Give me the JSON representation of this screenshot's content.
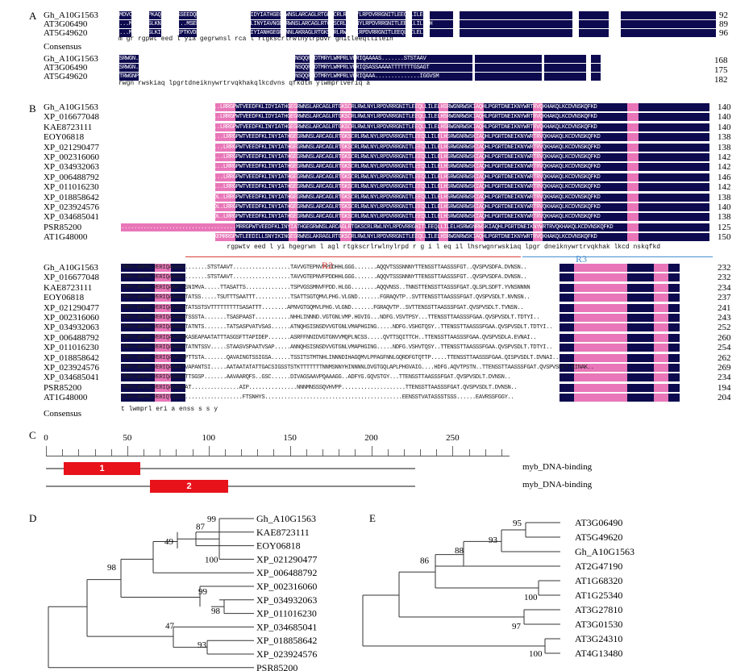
{
  "panels": {
    "A": "A",
    "B": "B",
    "C": "C",
    "D": "D",
    "E": "E"
  },
  "panelA": {
    "block1": {
      "rows": [
        {
          "name": "Gh_A10G1563",
          "seq": "MDVCGRDCVPKAQ.....SSEEDQMEL.RRGPWTVEEDFKLIDYIATHGEGRWNSLARCAGLRTGKSCRLRWLNYLRPDVRRGNITLEEQLLILELH",
          "end": "92"
        },
        {
          "name": "AT3G06490",
          "seq": "...MDKRGTSLKNNN......MSEDEVDLRRGPWTLEEDNLLINYIAVNGEGRWNSLARCAGLRTGKSCRLRWLNYLRPDVRRGNITLEEQLLILELH",
          "end": "89"
        },
        {
          "name": "AT5G49620",
          "seq": "...MDKRGCSLKINKNMEEPTKVDEEREMRRGPWTVEEDLLIYIANHGEGRWNNLAKRAGLRTGKSCRLRWLNYLRPDVRRGNITLEEQLLILELH",
          "end": "96"
        }
      ],
      "consensus_label": "Consensus",
      "consensus": "m     gr                  rgpwt eed    l  yia  gegrwnsl  rca l rtgkscrlrwlnylrpdvr gnitleeqllileih"
    },
    "block2": {
      "rows": [
        {
          "name": "Gh_A10G1563",
          "seq": "SRWGN..............RWSKIAQHLPGRTDNEIKNYWRTRVQKHAKQLKCDVNSQQFKDTMRYLWMPRLVERIQAAAAS.......STSTAAV",
          "end": "168"
        },
        {
          "name": "AT3G06490",
          "seq": "SRWGN..............RWSKIAQHLPGRTDNEIKNYWRTRVQKHAKQLKCDVNSQQFKDTMRYLWMPRLVERIQSASSAAAATTTTTTTGSAGT",
          "end": "175"
        },
        {
          "name": "AT5G49620",
          "seq": "TRWGNPEFDIIKFGSSCEDRWSKIAQHLPGRTDNEIKNYWRTRVQKHAKQLKCDVNSQQFKDTMRYLWMPRLVERIQAAA..............IGGVSM",
          "end": "182"
        }
      ],
      "consensus": "rwgn              rwskiaq lpgrtdneiknywrtrvqkhakqlkcdvns qfkdtm ylwmprlveriq a"
    }
  },
  "panelB": {
    "block1": {
      "rows": [
        {
          "name": "Gh_A10G1563",
          "seq": "MDVQGRDCVP.......KAQSSEEDQME...LRRGPWTVEEDFKLIDYIATHGEGRWNSLARCAGLRTGKSCRLRWLNYLRPDVRRGNITLEEQLLILELHSRWGNRWSKIAQHLPGRTDNEIKNYWRTRVQKHAKQLKCDVNSKQFKD",
          "end": "140"
        },
        {
          "name": "XP_016677048",
          "seq": "MDVQGRDCVP.......KAQSSEEDQME...LRRGPWTVEEDFKLIDYIATHGEGRWNSLARCAGLRTGKSCRLRWLNYLRPDVRRGNITLEEQLLILELHSRWGNRWSKIAQHLPGRTDNEIKNYWRTRVQKHAKQLKCDVNSKQFKD",
          "end": "140"
        },
        {
          "name": "KAE8723111",
          "seq": "MDVKARECAP.......NVQSSEEDEME...LRRGPWTVEEDFKLINYIATHGEGRWNSLARCAGLRTGKSCRLRWLNYLRPDVRRGNITLEEQLLILELHSRWGNRWSKIAQHLPGRTDNEIKNYWRTRVQKHAKQLKCDVNSKQFKD",
          "end": "140"
        },
        {
          "name": "EOY06818",
          "seq": "MDVKARGCSA.......DVQS...EEEDE...LRRGPWTVEEDFKLINYIATHGEGRWNSLARCAGLRTGKSCRLRWLNYLRPDVRRGNITLEEQLLILELHSRWGNRWSKIAQHLPGRTDNEIKNYWRTRVQKHAKQLKCDVNSKQFKD",
          "end": "138"
        },
        {
          "name": "XP_021290477",
          "seq": "MDVKARGCSA.......DVQS...EEEND...LRRGPWTVEEDFKLINYIATHGEGRWNSLARCAGLRTGKSCRLRWLNYLRPDVRRGNITLEEQLLILELHSRWGNRWSKIAQHLPGRTDNEIKNYWRTRVQKHAKQLKCDVNSKQFKD",
          "end": "138"
        },
        {
          "name": "XP_002316060",
          "seq": "MDVKGNSNSS.......SSTTQSDEEHMDL..LRRGPWTVEEDFKLINYIATHGEGRWNSLARCAGLRTGKSCRLRWLNYLRPDVRRGNITLEEQLLILELHSRWGNRWSKIAQHLPGRTDNEIKNYWRTRVQKHAKQLKCDVNSKQFKD",
          "end": "142"
        },
        {
          "name": "XP_034932063",
          "seq": "MDVKGNSNSS.......SSTTQSDEEHMDL..LRRGPWTVEEDFKLINYIATHGEGRWNSLARCAGLRTGKSCRLRWLNYLRPDVRRGNITLEEQLLILELHSRWGNRWSKIAQHLPGRTDNEIKNYWRTRVQKHAKQLKCDVNSKQFKD",
          "end": "142"
        },
        {
          "name": "XP_006488792",
          "seq": "MDVKGRACPSKGNSK..SSSTISSEEDLD...LRRGPWTVEEDFKLINYIATHGEGRWNSLARCAGLRTGKSCRLRWLNYLRPDVRRGNITLEEQLLILELHSRWGNRWSKIAQHLPGRTDNEIKNYWRTRVQKHAKQLKCDVNSKQFKD",
          "end": "146"
        },
        {
          "name": "XP_011016230",
          "seq": "MDVKGNSNSS.......SSTTQSDEEHMDL..LRRGPWTVEEDFKLINYIATHGEGRWNSLARCAGLRTGKSCRLRWLNYLRPDVRRGNITLEEQLLILELHSRWGNRWSKIAQHLPGRTDNEIKNYWRTRVQKHAKQLKCDVNSKQFKD",
          "end": "142"
        },
        {
          "name": "XP_018858642",
          "seq": "MDVKGRAR.........GTTVQSEDEN..DL.LRRGPWTVEEDFKLINYIATHGEGRWNSLARCAGLRTGKSCRLRWLNYLRPDVRRGNITLEEQLLILELHSRWGNRWSKIAQHLPGRTDNEIKNYWRTRVQKHAKQLKCDVNSKQFKD",
          "end": "138"
        },
        {
          "name": "XP_023924576",
          "seq": "MDVKGRGRSM.......SSTSQIDEDN..DL.LRRGPWTVEEDFKLINYIATHGEGRWNSLARCAGLRTGKSCRLRWLNYLRPDVRRGNITLEEQLLILELHSRWGNRWSKIAQHLPGRTDNEIKNYWRTRVQKHAKQLKCDVNSKQFKD",
          "end": "140"
        },
        {
          "name": "XP_034685041",
          "seq": "MDVNGRGG.........SSTVLSEEEN..DL.LRRGPWTVEEDFKLINYIATHGEGRWNSLARCAGLRTGKSCRLRWLNYLRPDVRRGNITLEEQLLILELHSRWGNRWSKIAQHLPGRTDNEIKNYWRTRVQKHAKQLKCDVNSKQFKD",
          "end": "138"
        },
        {
          "name": "PSR85200",
          "seq": "....................................MRRGPWTVEEDFKLINYIATHGEGRWNSLARCAGLRTGKSCRLRWLNYLRPDVRRGNITLEEQLLILELHSRWGNRWSKIAQHLPGRTDNEIKNYWRTRVQKHAKQLKCDVNSKQFKD",
          "end": "125"
        },
        {
          "name": "AT1G48000",
          "seq": "MNGRTEFANCKTLINNKEEVEEVEKMKKEKEMRRGPWTLEEDILLSNYIKINGEGRWNSLAKRAGLRTGKSCRLRWLNYLRPDVRRGNITLEEQLLILELHSRWGNRWSKIAQHLPGRTDNEIKNYWRTRVQKHAKQLKCDVNSKQFKD",
          "end": "150"
        }
      ],
      "consensus": "rgpwtv eed  l  yi  hgegrwn l  agl rtgkscrlrwlnylrpd  r g i l eq  il lhsrwgnrwskiaq lpgr dneiknywrtrvqkhak lkcd nskqfkd",
      "region_labels": [
        "R2",
        "R3"
      ]
    },
    "block2": {
      "rows": [
        {
          "name": "Gh_A10G1563",
          "seq": "TMRYLWMPRLVERIQAAAAS.......STSTAAVT..................TAVVGTEPNVFPDDHHLGGG.......AQQVTSSSNNNYTTENSSTTAASSSFGT..QVSPVSDFA.DVNSN..",
          "end": "232"
        },
        {
          "name": "XP_016677048",
          "seq": "TMRYLWMPRLVERIQAAAAS.......STSTAAVT..................TAVVGTEPNVFPDDHHLGGG.......AQQVTSSSNNNYTTENSSTTAASSSFGT..QVSPVSDFA.DVNSN..",
          "end": "232"
        },
        {
          "name": "KAE8723111",
          "seq": "TMRYLWMPRLVERIQAAATVSNIMVA.....TTASATTS..............TSPVGSSMNVFPDD.HLGG........AQQVNSS..TNNSTTENSSTTASSSFGAT.QLSPLSDFT.YVNSNNNN",
          "end": "234"
        },
        {
          "name": "EOY06818",
          "seq": "TMRYLWMPRLVERIQAAAAATATSS.....TSUTTTSAATTT...........TSATTSGTQMVLPHG.VLGND.......FGRAQVTP..SVTTENSSTTAASSSFGAT.QVSPVSDLT.NVNSN..",
          "end": "237"
        },
        {
          "name": "XP_021290477",
          "seq": "TMRYLWMPRLVERIQAAAAATATSSTSVTTTTTTTTTSASATTT........APNVGTGQMVLPHG.VLGND.......FGRAQVTP..SVTTENSSTTAASSSFGAT.QVSPVSDLT.TVNSN..",
          "end": "241"
        },
        {
          "name": "XP_002316060",
          "seq": "TMRYLWMPRLVERIQAAAAATSSSTA.......TSASPAAST...........NHHLINNND.VGTGNLVMP.HGVIG...NDFG.VSVTPSY...TTENSSTTAASSSFGAA.QVSPVSDLT.TDTYI..",
          "end": "243"
        },
        {
          "name": "XP_034932063",
          "seq": "TMRYLWMPRLVERIQAAAAATATNTS.......TATSASPVATVSAS......ATNQHSISNSDVVGTGNLVMAPHGING.....NDFG.VSHGTQSY..TTENSSTTAASSSFGAA.QVSPVSDLT.TDTYI..",
          "end": "252"
        },
        {
          "name": "XP_006488792",
          "seq": "TMRYLWMPRLVERIQAAAANKASEAPAATATTTASGSFTTAPIDEP.......ASRFFNNIDVGTGNVVMQPLNCSS.....QVTTSQITTCH..TTENSSTTAASSSFGAA.QVSPVSDLA.EVNAI..",
          "end": "260"
        },
        {
          "name": "XP_011016230",
          "seq": "TMRYLWMPRLVERIQAAAAATATNTSSV.....STAASVSPAATVSAP.....ANNQHSISNSDVVGTGNLVMAPHGING.....NDFG.VSHVTQSY..TTENSSTTAASSSFGAA.QVSPVSDLT.TDTYI..",
          "end": "254"
        },
        {
          "name": "XP_018858642",
          "seq": "TMRYLWMPRLVERIQAAATAPTTSTA.......QAVAINGTSSIGSA......TSSITSTMTNHLINNNDIHAGQMVLPPAGFNNLGQRDFGTQTTP.....TTENSSTTAASSSFGAA.QISPVSDLT.DVNAI..",
          "end": "262"
        },
        {
          "name": "XP_023924576",
          "seq": "TMRYLWMPRLVERIQAAAATVAPANTSI.....AATAATATATTGACSIGSSTSTKTTTTTTTNNMSNNYHINNNNLDVGTGQLAPLPHGVAIG....HDFG.AQVTPSTN..TTENSSTTAASSSFGAT.QVSPVSDLT.EINAK..",
          "end": "269"
        },
        {
          "name": "XP_034685041",
          "seq": "TMRYLWMPRLVERIQAAAAATTSGSP.......AAVAARQFS..GSC......DIVAGSAAVPQAAAGG..ADFYG.GQVSTGY...TTENSSTTAASSSFGAT.QVSPVSDLT.DVNSN..",
          "end": "234"
        },
        {
          "name": "PSR85200",
          "seq": "TMRYLWMPRLVERIQAAAAAAT...............AIP...............NNNMNSSSQVHVPP....................TTENSSTTAASSSFGAT.QVSPVSDLT.DVNSN..",
          "end": "194"
        },
        {
          "name": "AT1G48000",
          "seq": "TLRYLWMPRLVERIQTQSVQ..................FTSNHYS...........................................EENSSTVATASSSTSSS......EAVRSSFGGY..",
          "end": "204"
        }
      ],
      "consensus_label": "Consensus",
      "consensus": "t   lwmprl eri a                                                                            enss     s     s                   y"
    },
    "R2_label": "R2",
    "R3_label": "R3"
  },
  "panelC": {
    "ticks_major": [
      0,
      50,
      100,
      150,
      200,
      250
    ],
    "axis_max": 285,
    "domains": [
      {
        "label": "1",
        "start": 11,
        "end": 58,
        "name": "myb_DNA-binding"
      },
      {
        "label": "2",
        "start": 64,
        "end": 112,
        "name": "myb_DNA-binding"
      }
    ],
    "line_end": 227
  },
  "panelD": {
    "leaves": [
      "Gh_A10G1563",
      "KAE8723111",
      "EOY06818",
      "XP_021290477",
      "XP_006488792",
      "XP_002316060",
      "XP_034932063",
      "XP_011016230",
      "XP_034685041",
      "XP_018858642",
      "XP_023924576",
      "PSR85200"
    ],
    "bootstraps": [
      "99",
      "87",
      "49",
      "100",
      "98",
      "99",
      "98",
      "47",
      "93"
    ]
  },
  "panelE": {
    "leaves": [
      "AT3G06490",
      "AT5G49620",
      "Gh_A10G1563",
      "AT2G47190",
      "AT1G68320",
      "AT1G25340",
      "AT3G27810",
      "AT3G01530",
      "AT3G24310",
      "AT4G13480"
    ],
    "bootstraps": [
      "95",
      "93",
      "88",
      "86",
      "100",
      "97",
      "100"
    ]
  },
  "colors": {
    "identical": "#0d0a4f",
    "similar": "#e876b8",
    "weak": "#c8c4ee",
    "domain": "#e8121b",
    "r2_label": "#d9413a",
    "r3_label": "#4a8fd0"
  }
}
